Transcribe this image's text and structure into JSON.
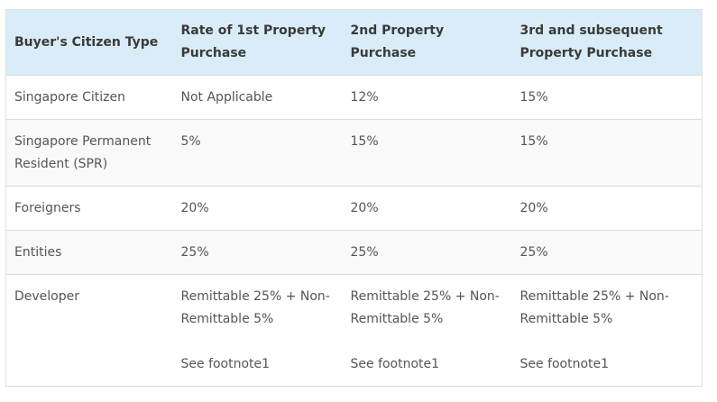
{
  "table": {
    "headers": [
      "Buyer's Citizen Type",
      "Rate of 1st Property Purchase",
      "2nd Property Purchase",
      "3rd and subsequent Property Purchase"
    ],
    "rows": [
      [
        "Singapore Citizen",
        "Not Applicable",
        "12%",
        "15%"
      ],
      [
        "Singapore Permanent Resident (SPR)",
        "5%",
        "15%",
        "15%"
      ],
      [
        "Foreigners",
        "20%",
        "20%",
        "20%"
      ],
      [
        "Entities",
        "25%",
        "25%",
        "25%"
      ],
      [
        "Developer",
        "Remittable 25% + Non-Remittable 5%",
        "Remittable 25% + Non-Remittable 5%",
        "Remittable 25% + Non-Remittable 5%"
      ]
    ],
    "developer_notes": [
      "See footnote1",
      "See footnote1",
      "See footnote1"
    ]
  }
}
